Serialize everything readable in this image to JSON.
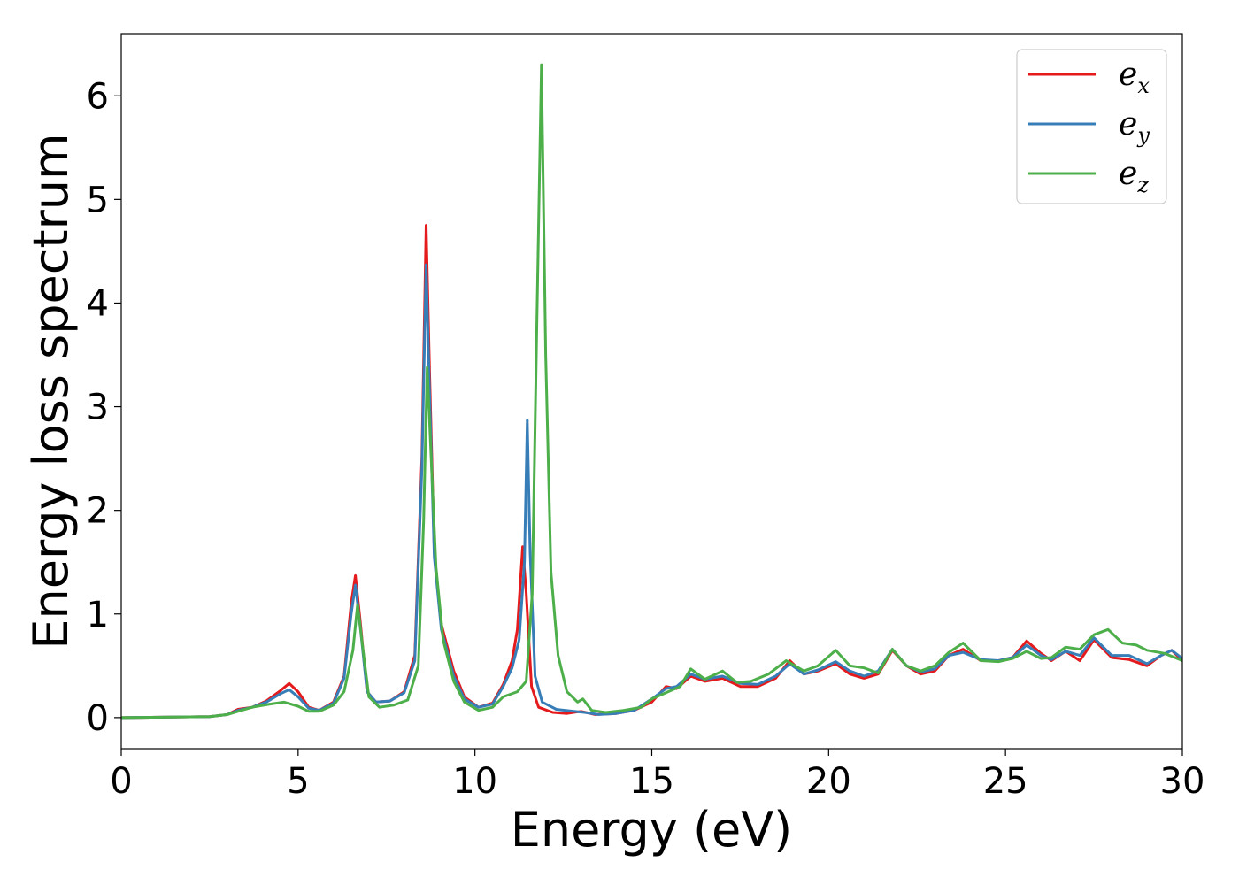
{
  "chart_data": {
    "type": "line",
    "title": "",
    "xlabel": "Energy (eV)",
    "ylabel": "Energy loss spectrum",
    "xlim": [
      0,
      30
    ],
    "ylim": [
      -0.3,
      6.6
    ],
    "xticks": [
      0,
      5,
      10,
      15,
      20,
      25,
      30
    ],
    "xtick_labels": [
      "0",
      "5",
      "10",
      "15",
      "20",
      "25",
      "30"
    ],
    "yticks": [
      0,
      1,
      2,
      3,
      4,
      5,
      6
    ],
    "ytick_labels": [
      "0",
      "1",
      "2",
      "3",
      "4",
      "5",
      "6"
    ],
    "grid": false,
    "legend": "top-right",
    "series": [
      {
        "name": "e_x",
        "legend_base": "e",
        "legend_sub": "x",
        "color": "#e41a1c",
        "points": [
          [
            0,
            0
          ],
          [
            2.5,
            0.01
          ],
          [
            3.0,
            0.03
          ],
          [
            3.3,
            0.08
          ],
          [
            3.7,
            0.1
          ],
          [
            4.1,
            0.16
          ],
          [
            4.5,
            0.26
          ],
          [
            4.75,
            0.33
          ],
          [
            5.0,
            0.25
          ],
          [
            5.3,
            0.1
          ],
          [
            5.6,
            0.07
          ],
          [
            6.0,
            0.15
          ],
          [
            6.3,
            0.4
          ],
          [
            6.5,
            1.1
          ],
          [
            6.62,
            1.37
          ],
          [
            6.75,
            0.95
          ],
          [
            6.95,
            0.25
          ],
          [
            7.2,
            0.15
          ],
          [
            7.6,
            0.16
          ],
          [
            8.0,
            0.25
          ],
          [
            8.3,
            0.6
          ],
          [
            8.5,
            2.5
          ],
          [
            8.62,
            4.75
          ],
          [
            8.72,
            3.3
          ],
          [
            8.85,
            1.6
          ],
          [
            9.05,
            0.9
          ],
          [
            9.4,
            0.45
          ],
          [
            9.7,
            0.2
          ],
          [
            10.1,
            0.1
          ],
          [
            10.5,
            0.14
          ],
          [
            10.8,
            0.32
          ],
          [
            11.05,
            0.55
          ],
          [
            11.2,
            0.85
          ],
          [
            11.35,
            1.65
          ],
          [
            11.45,
            1.2
          ],
          [
            11.6,
            0.3
          ],
          [
            11.8,
            0.1
          ],
          [
            12.2,
            0.05
          ],
          [
            12.6,
            0.04
          ],
          [
            13.0,
            0.06
          ],
          [
            13.4,
            0.03
          ],
          [
            14.0,
            0.04
          ],
          [
            14.5,
            0.07
          ],
          [
            15.0,
            0.15
          ],
          [
            15.4,
            0.3
          ],
          [
            15.7,
            0.28
          ],
          [
            16.1,
            0.4
          ],
          [
            16.5,
            0.35
          ],
          [
            17.0,
            0.38
          ],
          [
            17.5,
            0.3
          ],
          [
            18.0,
            0.3
          ],
          [
            18.5,
            0.38
          ],
          [
            18.9,
            0.55
          ],
          [
            19.3,
            0.42
          ],
          [
            19.7,
            0.45
          ],
          [
            20.2,
            0.52
          ],
          [
            20.6,
            0.42
          ],
          [
            21.0,
            0.38
          ],
          [
            21.4,
            0.42
          ],
          [
            21.8,
            0.65
          ],
          [
            22.2,
            0.5
          ],
          [
            22.6,
            0.42
          ],
          [
            23.0,
            0.45
          ],
          [
            23.4,
            0.6
          ],
          [
            23.8,
            0.66
          ],
          [
            24.3,
            0.55
          ],
          [
            24.8,
            0.55
          ],
          [
            25.2,
            0.58
          ],
          [
            25.6,
            0.74
          ],
          [
            26.0,
            0.62
          ],
          [
            26.3,
            0.55
          ],
          [
            26.7,
            0.64
          ],
          [
            27.1,
            0.55
          ],
          [
            27.5,
            0.75
          ],
          [
            28.0,
            0.58
          ],
          [
            28.5,
            0.56
          ],
          [
            29.0,
            0.5
          ],
          [
            29.4,
            0.6
          ],
          [
            29.7,
            0.65
          ],
          [
            30.0,
            0.55
          ]
        ]
      },
      {
        "name": "e_y",
        "legend_base": "e",
        "legend_sub": "y",
        "color": "#377eb8",
        "points": [
          [
            0,
            0
          ],
          [
            2.5,
            0.01
          ],
          [
            3.0,
            0.03
          ],
          [
            3.3,
            0.07
          ],
          [
            3.7,
            0.1
          ],
          [
            4.1,
            0.15
          ],
          [
            4.5,
            0.23
          ],
          [
            4.75,
            0.27
          ],
          [
            5.0,
            0.2
          ],
          [
            5.3,
            0.09
          ],
          [
            5.6,
            0.07
          ],
          [
            6.0,
            0.14
          ],
          [
            6.3,
            0.38
          ],
          [
            6.5,
            1.0
          ],
          [
            6.62,
            1.28
          ],
          [
            6.75,
            0.9
          ],
          [
            6.95,
            0.25
          ],
          [
            7.2,
            0.15
          ],
          [
            7.6,
            0.16
          ],
          [
            8.0,
            0.24
          ],
          [
            8.3,
            0.55
          ],
          [
            8.5,
            2.4
          ],
          [
            8.62,
            4.37
          ],
          [
            8.72,
            3.1
          ],
          [
            8.85,
            1.55
          ],
          [
            9.05,
            0.85
          ],
          [
            9.4,
            0.4
          ],
          [
            9.7,
            0.18
          ],
          [
            10.1,
            0.1
          ],
          [
            10.5,
            0.13
          ],
          [
            10.8,
            0.3
          ],
          [
            11.05,
            0.48
          ],
          [
            11.25,
            0.75
          ],
          [
            11.4,
            1.5
          ],
          [
            11.48,
            2.87
          ],
          [
            11.56,
            1.6
          ],
          [
            11.7,
            0.4
          ],
          [
            11.9,
            0.15
          ],
          [
            12.3,
            0.08
          ],
          [
            12.8,
            0.06
          ],
          [
            13.1,
            0.05
          ],
          [
            13.5,
            0.03
          ],
          [
            14.0,
            0.04
          ],
          [
            14.5,
            0.07
          ],
          [
            15.0,
            0.18
          ],
          [
            15.4,
            0.28
          ],
          [
            15.7,
            0.3
          ],
          [
            16.1,
            0.42
          ],
          [
            16.5,
            0.37
          ],
          [
            17.0,
            0.4
          ],
          [
            17.5,
            0.33
          ],
          [
            18.0,
            0.32
          ],
          [
            18.5,
            0.4
          ],
          [
            18.9,
            0.52
          ],
          [
            19.3,
            0.42
          ],
          [
            19.7,
            0.46
          ],
          [
            20.2,
            0.54
          ],
          [
            20.6,
            0.45
          ],
          [
            21.0,
            0.4
          ],
          [
            21.4,
            0.45
          ],
          [
            21.8,
            0.66
          ],
          [
            22.2,
            0.5
          ],
          [
            22.6,
            0.44
          ],
          [
            23.0,
            0.47
          ],
          [
            23.4,
            0.6
          ],
          [
            23.8,
            0.63
          ],
          [
            24.3,
            0.56
          ],
          [
            24.8,
            0.55
          ],
          [
            25.2,
            0.58
          ],
          [
            25.6,
            0.7
          ],
          [
            26.0,
            0.6
          ],
          [
            26.3,
            0.56
          ],
          [
            26.7,
            0.64
          ],
          [
            27.1,
            0.6
          ],
          [
            27.5,
            0.77
          ],
          [
            28.0,
            0.6
          ],
          [
            28.5,
            0.6
          ],
          [
            29.0,
            0.52
          ],
          [
            29.4,
            0.6
          ],
          [
            29.7,
            0.65
          ],
          [
            30.0,
            0.57
          ]
        ]
      },
      {
        "name": "e_z",
        "legend_base": "e",
        "legend_sub": "z",
        "color": "#4daf4a",
        "points": [
          [
            0,
            0
          ],
          [
            2.5,
            0.01
          ],
          [
            3.0,
            0.03
          ],
          [
            3.3,
            0.06
          ],
          [
            3.7,
            0.1
          ],
          [
            4.2,
            0.13
          ],
          [
            4.6,
            0.15
          ],
          [
            5.0,
            0.11
          ],
          [
            5.3,
            0.06
          ],
          [
            5.6,
            0.06
          ],
          [
            6.0,
            0.12
          ],
          [
            6.3,
            0.25
          ],
          [
            6.55,
            0.65
          ],
          [
            6.68,
            1.09
          ],
          [
            6.8,
            0.75
          ],
          [
            7.0,
            0.2
          ],
          [
            7.3,
            0.1
          ],
          [
            7.7,
            0.12
          ],
          [
            8.1,
            0.17
          ],
          [
            8.4,
            0.5
          ],
          [
            8.55,
            1.9
          ],
          [
            8.65,
            3.38
          ],
          [
            8.75,
            2.6
          ],
          [
            8.9,
            1.45
          ],
          [
            9.1,
            0.75
          ],
          [
            9.4,
            0.35
          ],
          [
            9.7,
            0.15
          ],
          [
            10.1,
            0.07
          ],
          [
            10.5,
            0.1
          ],
          [
            10.8,
            0.2
          ],
          [
            11.2,
            0.25
          ],
          [
            11.45,
            0.35
          ],
          [
            11.62,
            1.2
          ],
          [
            11.75,
            3.8
          ],
          [
            11.88,
            6.3
          ],
          [
            12.0,
            3.5
          ],
          [
            12.15,
            1.4
          ],
          [
            12.35,
            0.6
          ],
          [
            12.6,
            0.25
          ],
          [
            12.9,
            0.15
          ],
          [
            13.05,
            0.18
          ],
          [
            13.3,
            0.07
          ],
          [
            13.7,
            0.05
          ],
          [
            14.2,
            0.07
          ],
          [
            14.7,
            0.1
          ],
          [
            15.0,
            0.18
          ],
          [
            15.4,
            0.24
          ],
          [
            15.8,
            0.3
          ],
          [
            16.1,
            0.47
          ],
          [
            16.5,
            0.37
          ],
          [
            17.0,
            0.45
          ],
          [
            17.4,
            0.34
          ],
          [
            17.8,
            0.35
          ],
          [
            18.3,
            0.42
          ],
          [
            18.8,
            0.55
          ],
          [
            19.3,
            0.45
          ],
          [
            19.7,
            0.5
          ],
          [
            20.2,
            0.65
          ],
          [
            20.6,
            0.5
          ],
          [
            21.0,
            0.48
          ],
          [
            21.4,
            0.43
          ],
          [
            21.8,
            0.66
          ],
          [
            22.2,
            0.5
          ],
          [
            22.6,
            0.45
          ],
          [
            23.0,
            0.5
          ],
          [
            23.4,
            0.63
          ],
          [
            23.8,
            0.72
          ],
          [
            24.3,
            0.55
          ],
          [
            24.8,
            0.54
          ],
          [
            25.2,
            0.57
          ],
          [
            25.6,
            0.64
          ],
          [
            26.0,
            0.57
          ],
          [
            26.3,
            0.58
          ],
          [
            26.7,
            0.68
          ],
          [
            27.1,
            0.66
          ],
          [
            27.5,
            0.8
          ],
          [
            27.9,
            0.85
          ],
          [
            28.3,
            0.72
          ],
          [
            28.7,
            0.7
          ],
          [
            29.0,
            0.65
          ],
          [
            29.5,
            0.62
          ],
          [
            30.0,
            0.55
          ]
        ]
      }
    ]
  }
}
